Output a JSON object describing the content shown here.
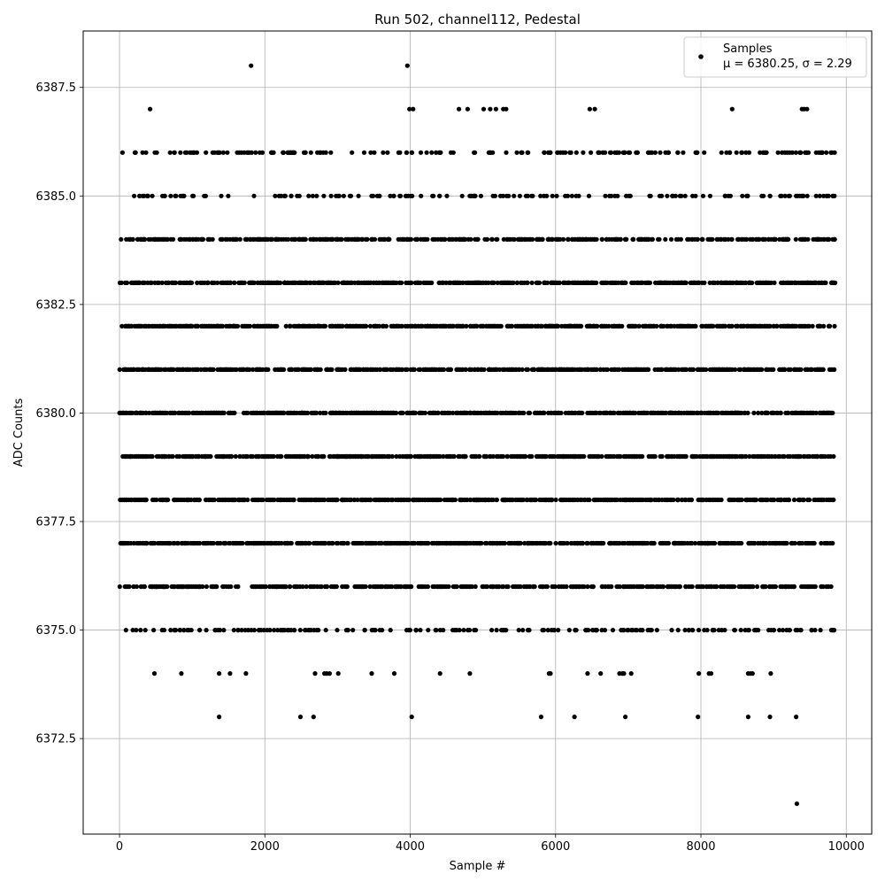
{
  "chart_data": {
    "type": "scatter",
    "title": "Run 502, channel112, Pedestal",
    "xlabel": "Sample #",
    "ylabel": "ADC Counts",
    "xlim": [
      -500,
      10350
    ],
    "ylim": [
      6370.3,
      6388.8
    ],
    "xticks": [
      0,
      2000,
      4000,
      6000,
      8000,
      10000
    ],
    "xtick_labels": [
      "0",
      "2000",
      "4000",
      "6000",
      "8000",
      "10000"
    ],
    "yticks": [
      6372.5,
      6375.0,
      6377.5,
      6380.0,
      6382.5,
      6385.0,
      6387.5
    ],
    "ytick_labels": [
      "6372.5",
      "6375.0",
      "6377.5",
      "6380.0",
      "6382.5",
      "6385.0",
      "6387.5"
    ],
    "grid": true,
    "legend": {
      "placement": "top-right",
      "entries": [
        "Samples",
        "μ = 6380.25, σ = 2.29"
      ]
    },
    "series": [
      {
        "name": "Samples",
        "color": "#000000",
        "n_samples": 9850,
        "level_occupancy_approx": [
          {
            "y": 6371,
            "fraction": 0.0002
          },
          {
            "y": 6373,
            "fraction": 0.0012
          },
          {
            "y": 6374,
            "fraction": 0.004
          },
          {
            "y": 6375,
            "fraction": 0.02
          },
          {
            "y": 6376,
            "fraction": 0.05
          },
          {
            "y": 6377,
            "fraction": 0.1
          },
          {
            "y": 6378,
            "fraction": 0.17
          },
          {
            "y": 6379,
            "fraction": 0.21
          },
          {
            "y": 6380,
            "fraction": 0.23
          },
          {
            "y": 6381,
            "fraction": 0.21
          },
          {
            "y": 6382,
            "fraction": 0.17
          },
          {
            "y": 6383,
            "fraction": 0.1
          },
          {
            "y": 6384,
            "fraction": 0.05
          },
          {
            "y": 6385,
            "fraction": 0.016
          },
          {
            "y": 6386,
            "fraction": 0.02
          },
          {
            "y": 6387,
            "fraction": 0.006
          },
          {
            "y": 6388,
            "fraction": 0.0003
          }
        ],
        "points": [
          [
            9320,
            6371
          ],
          [
            1370,
            6373
          ],
          [
            2490,
            6373
          ],
          [
            2670,
            6373
          ],
          [
            4020,
            6373
          ],
          [
            5800,
            6373
          ],
          [
            6260,
            6373
          ],
          [
            6960,
            6373
          ],
          [
            7960,
            6373
          ],
          [
            8650,
            6373
          ],
          [
            8950,
            6373
          ],
          [
            9310,
            6373
          ],
          [
            480,
            6374
          ],
          [
            850,
            6374
          ],
          [
            1370,
            6374
          ],
          [
            1520,
            6374
          ],
          [
            1740,
            6374
          ],
          [
            2690,
            6374
          ],
          [
            2820,
            6374
          ],
          [
            2850,
            6374
          ],
          [
            2890,
            6374
          ],
          [
            3010,
            6374
          ],
          [
            3470,
            6374
          ],
          [
            3780,
            6374
          ],
          [
            4410,
            6374
          ],
          [
            4820,
            6374
          ],
          [
            5910,
            6374
          ],
          [
            5930,
            6374
          ],
          [
            6440,
            6374
          ],
          [
            6620,
            6374
          ],
          [
            6880,
            6374
          ],
          [
            6920,
            6374
          ],
          [
            6940,
            6374
          ],
          [
            7040,
            6374
          ],
          [
            7970,
            6374
          ],
          [
            8110,
            6374
          ],
          [
            8140,
            6374
          ],
          [
            8650,
            6374
          ],
          [
            8680,
            6374
          ],
          [
            8710,
            6374
          ],
          [
            8960,
            6374
          ],
          [
            420,
            6387
          ],
          [
            3990,
            6387
          ],
          [
            4040,
            6387
          ],
          [
            4670,
            6387
          ],
          [
            4790,
            6387
          ],
          [
            5010,
            6387
          ],
          [
            5100,
            6387
          ],
          [
            5180,
            6387
          ],
          [
            5280,
            6387
          ],
          [
            5320,
            6387
          ],
          [
            6470,
            6387
          ],
          [
            6540,
            6387
          ],
          [
            8430,
            6387
          ],
          [
            9390,
            6387
          ],
          [
            9420,
            6387
          ],
          [
            9460,
            6387
          ],
          [
            1810,
            6388
          ],
          [
            3960,
            6388
          ]
        ]
      }
    ]
  }
}
